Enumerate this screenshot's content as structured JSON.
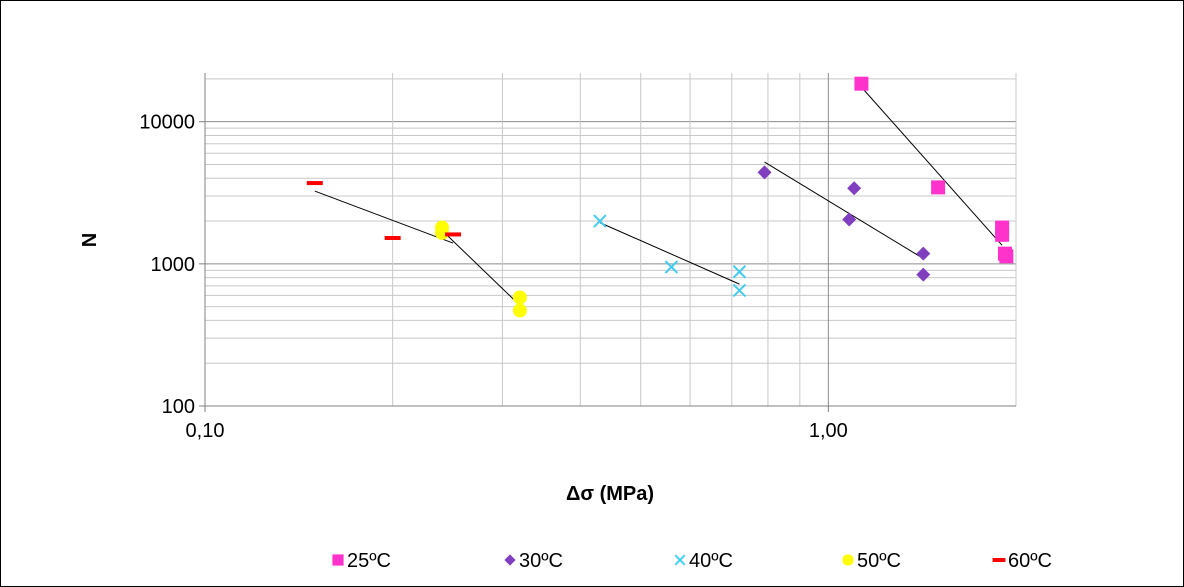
{
  "chart_data": {
    "type": "scatter",
    "xlabel": "Δσ (MPa)",
    "ylabel": "N",
    "xscale": "log",
    "yscale": "log",
    "xlim": [
      0.1,
      2.0
    ],
    "ylim": [
      100,
      22000
    ],
    "xticks": [
      {
        "value": 0.1,
        "label": "0,10"
      },
      {
        "value": 1.0,
        "label": "1,00"
      }
    ],
    "yticks": [
      {
        "value": 100,
        "label": "100"
      },
      {
        "value": 1000,
        "label": "1000"
      },
      {
        "value": 10000,
        "label": "10000"
      }
    ],
    "grid": true,
    "legend_position": "bottom",
    "series": [
      {
        "name": "25ºC",
        "marker": "square",
        "color": "#ff33cc",
        "points": [
          [
            1.13,
            18500
          ],
          [
            1.5,
            3450
          ],
          [
            1.9,
            1800
          ],
          [
            1.9,
            1600
          ],
          [
            1.92,
            1180
          ],
          [
            1.93,
            1130
          ]
        ],
        "trend": [
          [
            1.13,
            17500
          ],
          [
            1.9,
            1350
          ]
        ]
      },
      {
        "name": "30ºC",
        "marker": "diamond",
        "color": "#7f3fbf",
        "points": [
          [
            0.79,
            4400
          ],
          [
            1.1,
            3400
          ],
          [
            1.08,
            2050
          ],
          [
            1.42,
            1180
          ],
          [
            1.42,
            840
          ]
        ],
        "trend": [
          [
            0.79,
            5200
          ],
          [
            1.42,
            1090
          ]
        ]
      },
      {
        "name": "40ºC",
        "marker": "x",
        "color": "#44ccee",
        "points": [
          [
            0.43,
            2000
          ],
          [
            0.56,
            950
          ],
          [
            0.72,
            880
          ],
          [
            0.72,
            650
          ]
        ],
        "trend": [
          [
            0.43,
            1950
          ],
          [
            0.72,
            720
          ]
        ]
      },
      {
        "name": "50ºC",
        "marker": "circle",
        "color": "#ffff00",
        "points": [
          [
            0.24,
            1800
          ],
          [
            0.24,
            1650
          ],
          [
            0.32,
            580
          ],
          [
            0.32,
            470
          ]
        ],
        "trend": [
          [
            0.24,
            1720
          ],
          [
            0.32,
            510
          ]
        ]
      },
      {
        "name": "60ºC",
        "marker": "dash",
        "color": "#ff0000",
        "points": [
          [
            0.15,
            3700
          ],
          [
            0.2,
            1520
          ],
          [
            0.25,
            1610
          ]
        ],
        "trend": [
          [
            0.15,
            3250
          ],
          [
            0.25,
            1400
          ]
        ]
      }
    ]
  }
}
